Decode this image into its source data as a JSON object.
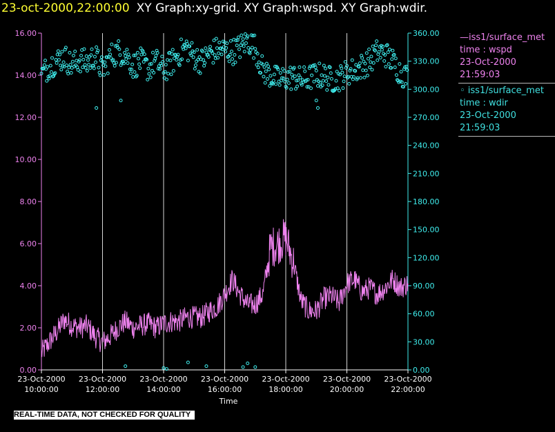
{
  "header": {
    "date": "23-oct-2000,22:00:00",
    "graphs": "XY Graph:xy-grid.  XY Graph:wspd.  XY Graph:wdir."
  },
  "legend": {
    "wspd": {
      "source": "—iss1/surface_met",
      "var": "time : wspd",
      "date": "23-Oct-2000",
      "time": "21:59:03"
    },
    "wdir": {
      "source": "◦ iss1/surface_met",
      "var": "time : wdir",
      "date": "23-Oct-2000",
      "time": "21:59:03"
    }
  },
  "footer": {
    "quality_note": "REAL-TIME DATA, NOT CHECKED FOR QUALITY"
  },
  "colors": {
    "wspd": "#ee82ee",
    "wdir": "#40f0f0",
    "grid": "#ffffff",
    "axis": "#ffffff"
  },
  "chart_data": {
    "type": "line",
    "xlabel": "Time",
    "x_range_hours": [
      10,
      22
    ],
    "x_ticks": [
      {
        "date": "23-Oct-2000",
        "time": "10:00:00",
        "h": 10
      },
      {
        "date": "23-Oct-2000",
        "time": "12:00:00",
        "h": 12
      },
      {
        "date": "23-Oct-2000",
        "time": "14:00:00",
        "h": 14
      },
      {
        "date": "23-Oct-2000",
        "time": "16:00:00",
        "h": 16
      },
      {
        "date": "23-Oct-2000",
        "time": "18:00:00",
        "h": 18
      },
      {
        "date": "23-Oct-2000",
        "time": "20:00:00",
        "h": 20
      },
      {
        "date": "23-Oct-2000",
        "time": "22:00:00",
        "h": 22
      }
    ],
    "y_left": {
      "range": [
        0,
        16
      ],
      "ticks": [
        "0.00",
        "2.00",
        "4.00",
        "6.00",
        "8.00",
        "10.00",
        "12.00",
        "14.00",
        "16.00"
      ]
    },
    "y_right": {
      "range": [
        0,
        360
      ],
      "ticks": [
        "0.00",
        "30.00",
        "60.00",
        "90.00",
        "120.00",
        "150.00",
        "180.00",
        "210.00",
        "240.00",
        "270.00",
        "300.00",
        "330.00",
        "360.00"
      ]
    },
    "grid": "vertical",
    "series": [
      {
        "key": "wspd",
        "axis": "left",
        "style": "line",
        "x": [
          10.0,
          10.25,
          10.5,
          10.75,
          11.0,
          11.25,
          11.5,
          11.75,
          12.0,
          12.25,
          12.5,
          12.75,
          13.0,
          13.25,
          13.5,
          13.75,
          14.0,
          14.25,
          14.5,
          14.75,
          15.0,
          15.25,
          15.5,
          15.75,
          16.0,
          16.25,
          16.5,
          16.75,
          17.0,
          17.25,
          17.5,
          17.75,
          18.0,
          18.25,
          18.5,
          18.75,
          19.0,
          19.25,
          19.5,
          19.75,
          20.0,
          20.25,
          20.5,
          20.75,
          21.0,
          21.25,
          21.5,
          21.75,
          22.0
        ],
        "y": [
          0.8,
          1.3,
          1.8,
          2.4,
          2.1,
          2.0,
          2.1,
          1.6,
          1.3,
          1.6,
          2.0,
          2.3,
          2.0,
          2.1,
          2.2,
          2.0,
          2.2,
          2.3,
          2.3,
          2.5,
          2.5,
          2.5,
          2.8,
          3.0,
          3.6,
          4.3,
          3.6,
          3.1,
          3.1,
          3.6,
          5.8,
          6.0,
          6.3,
          5.1,
          3.3,
          2.8,
          2.8,
          3.4,
          3.5,
          3.2,
          4.1,
          4.3,
          3.7,
          3.9,
          3.6,
          3.9,
          4.3,
          3.9,
          4.1
        ]
      },
      {
        "key": "wdir",
        "axis": "right",
        "style": "scatter",
        "x": [
          10.0,
          10.25,
          10.5,
          10.75,
          11.0,
          11.25,
          11.5,
          11.75,
          12.0,
          12.25,
          12.5,
          12.75,
          13.0,
          13.25,
          13.5,
          13.75,
          14.0,
          14.25,
          14.5,
          14.75,
          15.0,
          15.25,
          15.5,
          15.75,
          16.0,
          16.25,
          16.5,
          16.75,
          17.0,
          17.25,
          17.5,
          17.75,
          18.0,
          18.25,
          18.5,
          18.75,
          19.0,
          19.25,
          19.5,
          19.75,
          20.0,
          20.25,
          20.5,
          20.75,
          21.0,
          21.25,
          21.5,
          21.75,
          22.0
        ],
        "y": [
          315,
          325,
          330,
          335,
          325,
          332,
          328,
          336,
          320,
          335,
          340,
          338,
          325,
          330,
          322,
          330,
          320,
          328,
          338,
          345,
          335,
          330,
          338,
          342,
          342,
          340,
          345,
          352,
          345,
          320,
          315,
          310,
          312,
          313,
          310,
          312,
          315,
          314,
          310,
          312,
          318,
          320,
          325,
          330,
          340,
          338,
          330,
          318,
          312
        ]
      },
      {
        "key": "wdir_low",
        "axis": "right",
        "style": "scatter",
        "x": [
          12.75,
          14.0,
          14.1,
          14.8,
          15.4,
          16.6,
          16.75,
          17.0
        ],
        "y": [
          4,
          2,
          1,
          8,
          4,
          3,
          7,
          3
        ]
      }
    ]
  }
}
